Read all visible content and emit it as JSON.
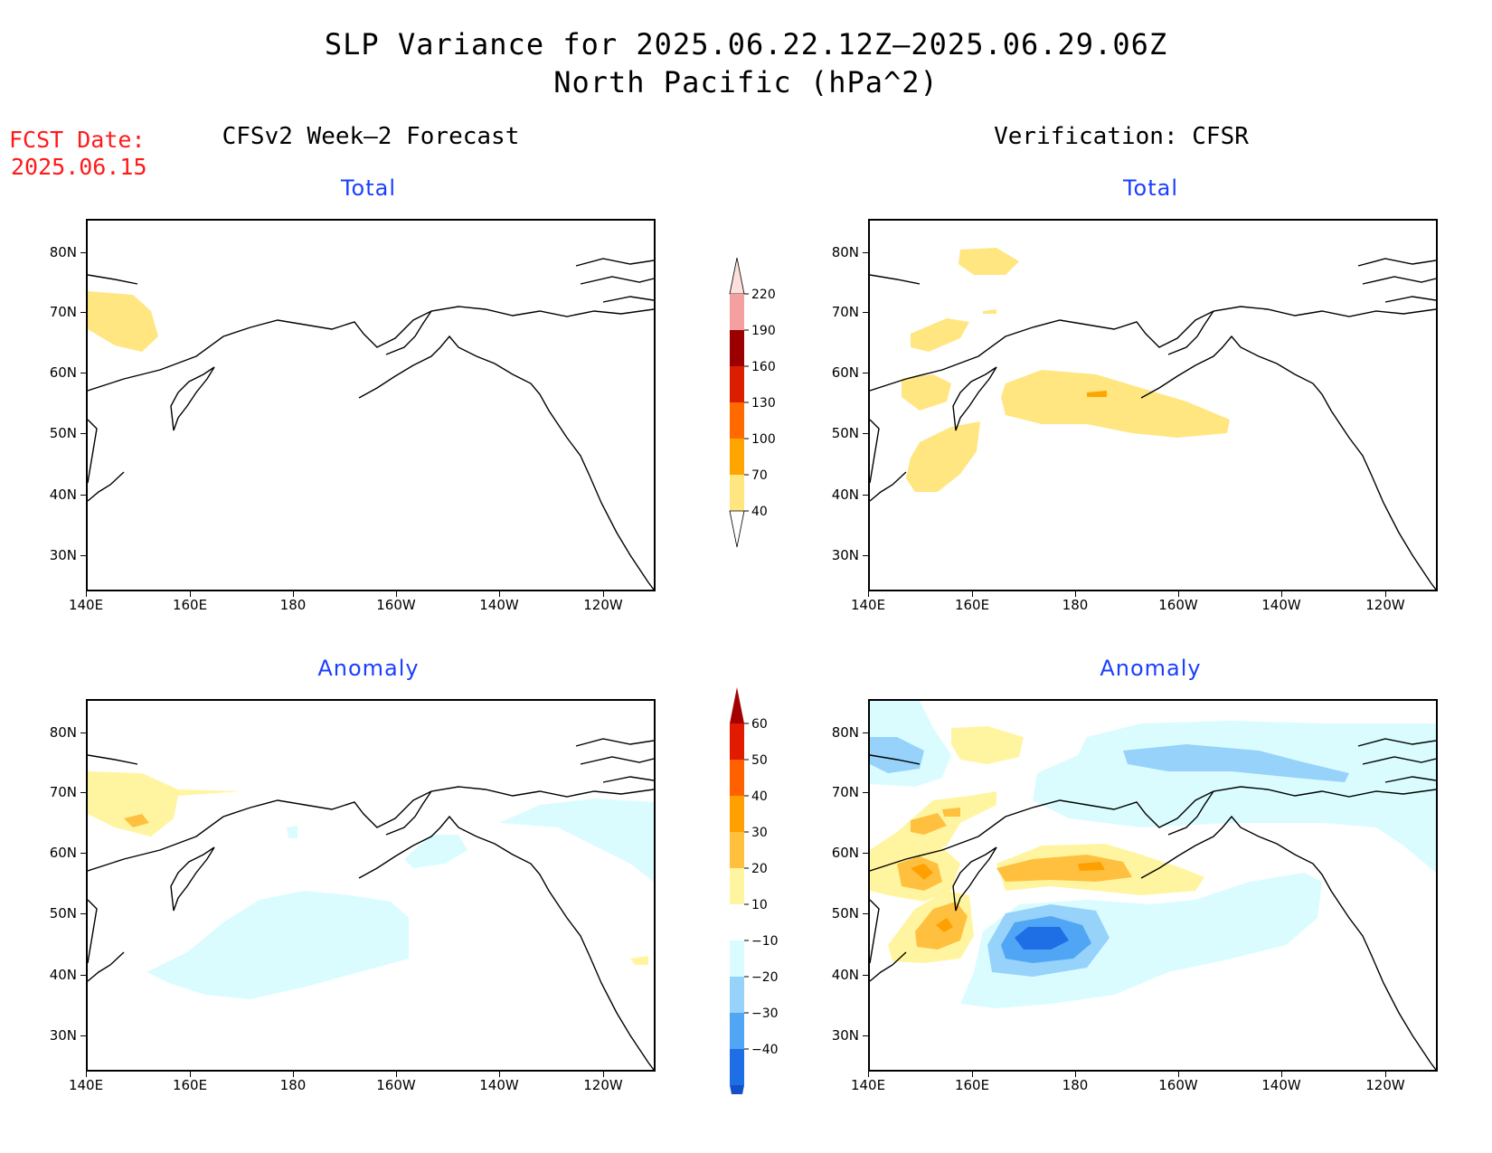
{
  "title": {
    "line1": "SLP Variance for 2025.06.22.12Z—2025.06.29.06Z",
    "line2": "North Pacific (hPa^2)"
  },
  "forecast_date": {
    "label": "FCST Date:",
    "value": "2025.06.15"
  },
  "columns": {
    "left": "CFSv2 Week—2 Forecast",
    "right": "Verification: CFSR"
  },
  "panels": {
    "forecast_total": "Total",
    "forecast_anomaly": "Anomaly",
    "verification_total": "Total",
    "verification_anomaly": "Anomaly"
  },
  "axes": {
    "lat_labels": [
      "80N",
      "70N",
      "60N",
      "50N",
      "40N",
      "30N"
    ],
    "lon_labels": [
      "140E",
      "160E",
      "180",
      "160W",
      "140W",
      "120W"
    ]
  },
  "colorbars": {
    "total": {
      "labels": [
        "220",
        "190",
        "160",
        "130",
        "100",
        "70",
        "40"
      ],
      "colors": [
        "#fde0dc",
        "#f4a0a0",
        "#9b0000",
        "#dc1e00",
        "#ff6a00",
        "#ffa500",
        "#ffe680"
      ]
    },
    "anomaly": {
      "labels": [
        "60",
        "50",
        "40",
        "30",
        "20",
        "10",
        "−10",
        "−20",
        "−30",
        "−40"
      ],
      "colors": [
        "#a50000",
        "#e11a00",
        "#ff6000",
        "#ffa000",
        "#ffc040",
        "#fff5a0",
        "#ffffff",
        "#dafcff",
        "#96d2fa",
        "#50a5f5",
        "#1e6ee6",
        "#1450c8"
      ]
    }
  },
  "colors": {
    "title_blue": "#1a3fff",
    "fcst_red": "#ff1a1a"
  }
}
